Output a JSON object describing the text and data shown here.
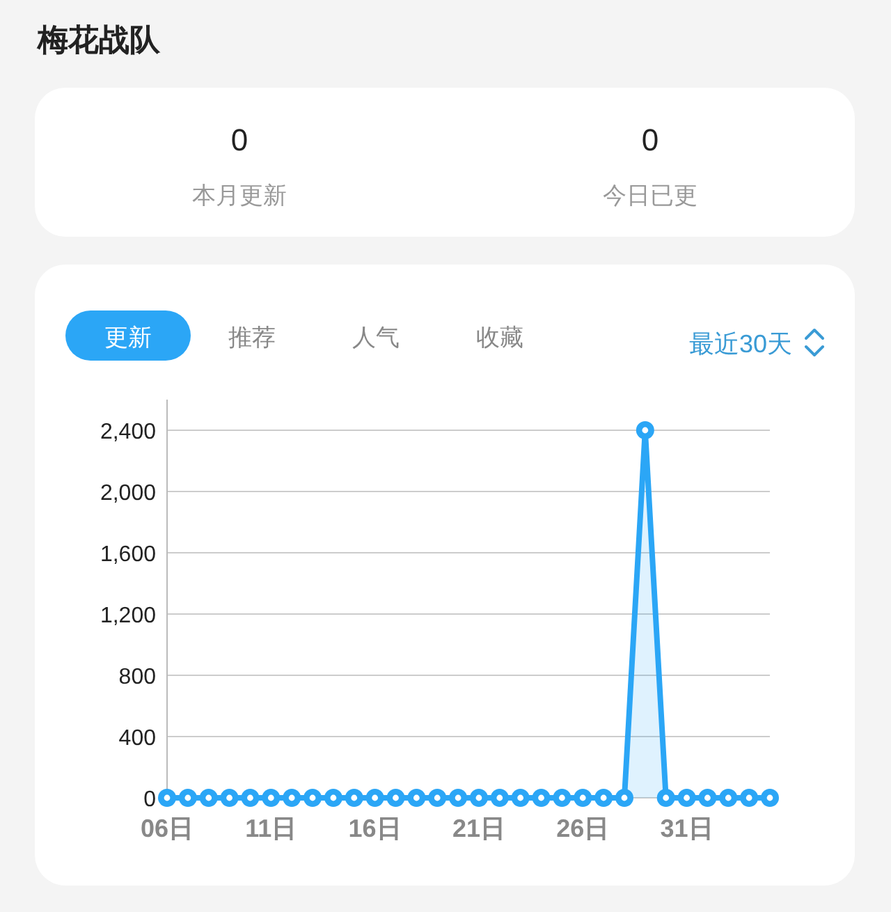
{
  "chart_data": [
    {
      "type": "other",
      "title": "梅花战队",
      "annotations": [
        "0",
        "本月更新",
        "0",
        "今日已更"
      ]
    },
    {
      "type": "area",
      "annotations": [
        "更新",
        "推荐",
        "人气",
        "收藏",
        "最近30天"
      ],
      "categories": [
        "06日",
        null,
        null,
        null,
        null,
        "11日",
        null,
        null,
        null,
        null,
        "16日",
        null,
        null,
        null,
        null,
        "21日",
        null,
        null,
        null,
        null,
        "26日",
        null,
        null,
        null,
        null,
        "31日",
        null,
        null,
        null,
        null
      ],
      "series": [
        {
          "color": "#2ba6f6",
          "values": [
            0,
            0,
            0,
            0,
            0,
            0,
            0,
            0,
            0,
            0,
            0,
            0,
            0,
            0,
            0,
            0,
            0,
            0,
            0,
            0,
            0,
            0,
            0,
            2400,
            0,
            0,
            0,
            0,
            0,
            0
          ]
        }
      ],
      "ylim": [
        0,
        2600
      ],
      "yticks": [
        0,
        400,
        800,
        {
          "value": 1200,
          "label": "1,200"
        },
        {
          "value": 1600,
          "label": "1,600"
        },
        {
          "value": 2000,
          "label": "2,000"
        },
        {
          "value": 2400,
          "label": "2,400"
        }
      ],
      "grid": "y",
      "marker": "circle"
    }
  ]
}
